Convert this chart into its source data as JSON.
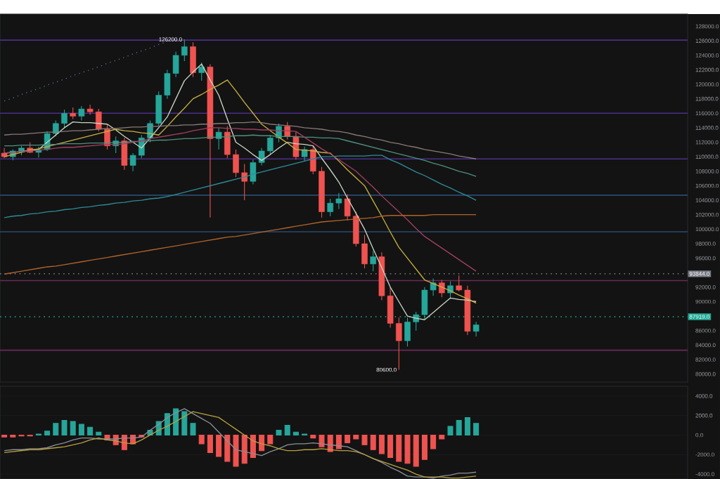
{
  "chart_data": [
    {
      "type": "candlestick",
      "categories": [
        null,
        null,
        null,
        null,
        null,
        null,
        null,
        null,
        null,
        null,
        null,
        null,
        null,
        null,
        null,
        null,
        null,
        null,
        null,
        null,
        null,
        null,
        null,
        null,
        null,
        null,
        null,
        null,
        null,
        null,
        null,
        null,
        null,
        null,
        null,
        null,
        null,
        null,
        null,
        null,
        null,
        null,
        null,
        null,
        null,
        null,
        null,
        null,
        null,
        null,
        null,
        null,
        null,
        null,
        null,
        null
      ],
      "ohlc": [
        [
          110500,
          111200,
          109800,
          110000
        ],
        [
          110000,
          111000,
          109500,
          110800
        ],
        [
          110800,
          111500,
          110200,
          111200
        ],
        [
          111200,
          112000,
          110500,
          110600
        ],
        [
          110600,
          111400,
          109900,
          111000
        ],
        [
          111000,
          113500,
          110800,
          113200
        ],
        [
          113200,
          115000,
          112800,
          114600
        ],
        [
          114600,
          116500,
          114000,
          116000
        ],
        [
          116000,
          116800,
          115200,
          115600
        ],
        [
          115600,
          117000,
          115000,
          116600
        ],
        [
          116600,
          117200,
          115800,
          116200
        ],
        [
          116200,
          116600,
          113500,
          113800
        ],
        [
          113800,
          114500,
          111000,
          111500
        ],
        [
          111500,
          112800,
          110500,
          112200
        ],
        [
          112200,
          112600,
          108200,
          108800
        ],
        [
          108800,
          110500,
          108000,
          110200
        ],
        [
          110200,
          113000,
          109800,
          112600
        ],
        [
          112600,
          115000,
          112000,
          114600
        ],
        [
          114600,
          119000,
          114200,
          118500
        ],
        [
          118500,
          122000,
          118000,
          121500
        ],
        [
          121500,
          124500,
          121000,
          124000
        ],
        [
          124000,
          126200,
          123200,
          125200
        ],
        [
          125200,
          125800,
          121000,
          121600
        ],
        [
          121600,
          123000,
          120500,
          122400
        ],
        [
          122400,
          122800,
          101600,
          112500
        ],
        [
          112500,
          114000,
          111000,
          113400
        ],
        [
          113400,
          114200,
          109800,
          110300
        ],
        [
          110300,
          111000,
          107200,
          107800
        ],
        [
          107800,
          109000,
          104000,
          106600
        ],
        [
          106600,
          109600,
          106200,
          109200
        ],
        [
          109200,
          111200,
          108800,
          110800
        ],
        [
          110800,
          113000,
          110200,
          112600
        ],
        [
          112600,
          114600,
          112000,
          114200
        ],
        [
          114200,
          114800,
          112400,
          112800
        ],
        [
          112800,
          113400,
          109600,
          110000
        ],
        [
          110000,
          111400,
          109400,
          111000
        ],
        [
          111000,
          111600,
          107600,
          108000
        ],
        [
          108000,
          108600,
          101600,
          102400
        ],
        [
          102400,
          104200,
          101800,
          103600
        ],
        [
          103600,
          105000,
          102800,
          104200
        ],
        [
          104200,
          104800,
          101200,
          101800
        ],
        [
          101800,
          102400,
          97600,
          98000
        ],
        [
          98000,
          99200,
          94600,
          95200
        ],
        [
          95200,
          97000,
          94200,
          96200
        ],
        [
          96200,
          96800,
          90200,
          90800
        ],
        [
          90800,
          92000,
          86400,
          87000
        ],
        [
          87000,
          87800,
          80600,
          84600
        ],
        [
          84600,
          87800,
          83800,
          87200
        ],
        [
          87200,
          88600,
          86000,
          88200
        ],
        [
          88200,
          92000,
          87600,
          91600
        ],
        [
          91600,
          93200,
          90800,
          92600
        ],
        [
          92600,
          93000,
          90600,
          91200
        ],
        [
          91200,
          92800,
          90400,
          92200
        ],
        [
          92200,
          93600,
          91400,
          91600
        ],
        [
          91600,
          92200,
          85400,
          85900
        ],
        [
          85900,
          87200,
          85200,
          86800
        ]
      ],
      "colors": [
        "#ef5350",
        "#26a69a",
        "#26a69a",
        "#ef5350",
        "#26a69a",
        "#26a69a",
        "#26a69a",
        "#26a69a",
        "#ef5350",
        "#26a69a",
        "#ef5350",
        "#ef5350",
        "#ef5350",
        "#26a69a",
        "#ef5350",
        "#26a69a",
        "#26a69a",
        "#26a69a",
        "#26a69a",
        "#26a69a",
        "#26a69a",
        "#26a69a",
        "#ef5350",
        "#26a69a",
        "#ef5350",
        "#26a69a",
        "#ef5350",
        "#ef5350",
        "#ef5350",
        "#26a69a",
        "#26a69a",
        "#26a69a",
        "#26a69a",
        "#ef5350",
        "#ef5350",
        "#26a69a",
        "#ef5350",
        "#ef5350",
        "#26a69a",
        "#26a69a",
        "#ef5350",
        "#ef5350",
        "#ef5350",
        "#26a69a",
        "#ef5350",
        "#ef5350",
        "#ef5350",
        "#26a69a",
        "#26a69a",
        "#26a69a",
        "#26a69a",
        "#ef5350",
        "#26a69a",
        "#ef5350",
        "#ef5350",
        "#26a69a"
      ],
      "series": [
        {
          "type": "line",
          "color": "#c9d6c4",
          "values": [
            110500,
            110600,
            110700,
            110900,
            111000,
            112000,
            113000,
            114000,
            114800,
            114700,
            114700,
            114600,
            114500,
            113700,
            112800,
            112000,
            111200,
            112600,
            114000,
            115500,
            118000,
            120500,
            121700,
            122800,
            120600,
            118500,
            115200,
            112000,
            111200,
            110300,
            109500,
            110300,
            111200,
            112000,
            111800,
            111700,
            111500,
            109800,
            108200,
            106500,
            104300,
            102200,
            100000,
            97300,
            94700,
            92000,
            90000,
            88000,
            87700,
            87500,
            88500,
            89500,
            90500,
            90300,
            90200,
            90000
          ]
        },
        {
          "type": "line",
          "color": "#c8b040",
          "values": [
            110000,
            110300,
            110600,
            110900,
            111100,
            111400,
            111700,
            112000,
            112300,
            112600,
            112900,
            113200,
            113500,
            113800,
            113600,
            113500,
            113300,
            113200,
            113000,
            114200,
            115500,
            116700,
            118000,
            118600,
            119300,
            119900,
            120600,
            119100,
            117500,
            116000,
            114500,
            113600,
            112700,
            111900,
            111000,
            110900,
            110800,
            110600,
            110500,
            109400,
            108200,
            107100,
            106000,
            103900,
            101800,
            99600,
            97500,
            96000,
            94500,
            93000,
            92500,
            92000,
            91500,
            90900,
            90400,
            89800
          ]
        },
        {
          "type": "line",
          "color": "#8a7a78",
          "values": [
            113000,
            113100,
            113100,
            113200,
            113300,
            113400,
            113400,
            113500,
            113600,
            113600,
            113700,
            113800,
            113900,
            113900,
            114000,
            114100,
            114100,
            114200,
            114200,
            114300,
            114300,
            114400,
            114400,
            114500,
            114500,
            114600,
            114600,
            114700,
            114700,
            114800,
            114700,
            114500,
            114400,
            114300,
            114200,
            114000,
            113900,
            113800,
            113600,
            113500,
            113300,
            113000,
            112800,
            112500,
            112300,
            112000,
            111800,
            111500,
            111300,
            111000,
            110800,
            110600,
            110400,
            110100,
            109900,
            109700
          ]
        },
        {
          "type": "line",
          "color": "#4f8f80",
          "values": [
            111500,
            111500,
            111600,
            111600,
            111600,
            111700,
            111700,
            111800,
            111800,
            111800,
            111900,
            111900,
            111900,
            112000,
            112000,
            112100,
            112100,
            112200,
            112300,
            112300,
            112400,
            112500,
            112500,
            112600,
            112700,
            112700,
            112800,
            112900,
            112900,
            113000,
            112900,
            112900,
            112800,
            112800,
            112800,
            112700,
            112700,
            112600,
            112600,
            112500,
            112200,
            111900,
            111600,
            111300,
            111000,
            110700,
            110400,
            110100,
            109800,
            109500,
            109100,
            108800,
            108400,
            108000,
            107700,
            107300
          ]
        },
        {
          "type": "line",
          "color": "#a04060",
          "values": [
            110500,
            110600,
            110700,
            110800,
            110900,
            111000,
            111200,
            111300,
            111300,
            111400,
            111500,
            111600,
            111700,
            111700,
            111800,
            112000,
            112200,
            112500,
            112700,
            112900,
            113100,
            113300,
            113600,
            113800,
            114000,
            114000,
            113900,
            113900,
            113800,
            113800,
            113700,
            113700,
            113600,
            113600,
            113500,
            112700,
            111900,
            111100,
            110400,
            109600,
            108800,
            108000,
            106900,
            105800,
            104600,
            103500,
            102400,
            101300,
            100100,
            99000,
            98200,
            97400,
            96600,
            95800,
            95000,
            94200
          ]
        },
        {
          "type": "line",
          "color": "#2e8c9a",
          "values": [
            101600,
            101800,
            101900,
            102100,
            102200,
            102400,
            102500,
            102700,
            102800,
            103000,
            103100,
            103300,
            103400,
            103600,
            103700,
            103900,
            104000,
            104200,
            104300,
            104500,
            104800,
            105100,
            105400,
            105700,
            106000,
            106300,
            106600,
            106900,
            107200,
            107600,
            107900,
            108200,
            108500,
            108800,
            109100,
            109400,
            109700,
            110000,
            110000,
            110100,
            110100,
            110100,
            110100,
            110200,
            110200,
            109600,
            109100,
            108500,
            107900,
            107400,
            106800,
            106200,
            105700,
            105100,
            104600,
            104000
          ]
        },
        {
          "type": "line",
          "color": "#b0642a",
          "values": [
            93800,
            94000,
            94200,
            94400,
            94600,
            94800,
            94900,
            95100,
            95300,
            95500,
            95700,
            95900,
            96100,
            96300,
            96500,
            96700,
            96900,
            97100,
            97300,
            97500,
            97700,
            97900,
            98100,
            98300,
            98500,
            98700,
            98900,
            99000,
            99200,
            99400,
            99600,
            99800,
            100000,
            100200,
            100400,
            100600,
            100800,
            101000,
            101100,
            101200,
            101300,
            101400,
            101500,
            101600,
            101800,
            101900,
            101900,
            101900,
            101900,
            101900,
            102000,
            102000,
            102000,
            102000,
            102000,
            102000
          ]
        },
        {
          "type": "line",
          "color": "#5a6a9a",
          "line_style": "dotted",
          "values": [
            117700,
            118100,
            118600,
            119000,
            119400,
            119900,
            120300,
            120700,
            121200,
            121600,
            122000,
            122400,
            122900,
            123300,
            123700,
            124200,
            124600,
            125000,
            125500,
            125900,
            null,
            null,
            null,
            null,
            null,
            null,
            null,
            null,
            null,
            null,
            null,
            null,
            null,
            null,
            null,
            null,
            null,
            null,
            null,
            null,
            null,
            null,
            null,
            null,
            null,
            null,
            null,
            null,
            null,
            null,
            null,
            null,
            null,
            null,
            null,
            null
          ]
        }
      ],
      "ref_lines": [
        {
          "axis": "y",
          "value": 126100,
          "color": "#4b2f8a"
        },
        {
          "axis": "y",
          "value": 116000,
          "color": "#4b2f8a"
        },
        {
          "axis": "y",
          "value": 109700,
          "color": "#4b2f8a"
        },
        {
          "axis": "y",
          "value": 104700,
          "color": "#2a4a70"
        },
        {
          "axis": "y",
          "value": 99650,
          "color": "#2a4a70"
        },
        {
          "axis": "y",
          "value": 92900,
          "color": "#6a2a58"
        },
        {
          "axis": "y",
          "value": 83300,
          "color": "#6a2a58"
        },
        {
          "axis": "y",
          "value": 93844,
          "label": "93844.0",
          "color": "#787b86",
          "line_style": "dotted"
        },
        {
          "axis": "y",
          "value": 87919,
          "label": "87919.0",
          "color": "#22ab94",
          "line_style": "dotted"
        }
      ],
      "annotations": [
        {
          "text": "126200.0",
          "y": 126200
        },
        "80600.0"
      ],
      "ylim": [
        78900,
        129700
      ],
      "yticks": [
        {
          "value": 80000,
          "label": "80000.0"
        },
        {
          "value": 82000,
          "label": "82000.0"
        },
        {
          "value": 84000,
          "label": "84000.0"
        },
        {
          "value": 86000,
          "label": "86000.0"
        },
        {
          "value": 90000,
          "label": "90000.0"
        },
        {
          "value": 92000,
          "label": "92000.0"
        },
        {
          "value": 96000,
          "label": "96000.0"
        },
        {
          "value": 98000,
          "label": "98000.0"
        },
        {
          "value": 100000,
          "label": "100000.0"
        },
        {
          "value": 102000,
          "label": "102000.0"
        },
        {
          "value": 104000,
          "label": "104000.0"
        },
        {
          "value": 106000,
          "label": "106000.0"
        },
        {
          "value": 108000,
          "label": "108000.0"
        },
        {
          "value": 110000,
          "label": "110000.0"
        },
        {
          "value": 112000,
          "label": "112000.0"
        },
        {
          "value": 114000,
          "label": "114000.0"
        },
        {
          "value": 116000,
          "label": "116000.0"
        },
        {
          "value": 118000,
          "label": "118000.0"
        },
        {
          "value": 120000,
          "label": "120000.0"
        },
        {
          "value": 122000,
          "label": "122000.0"
        },
        {
          "value": 124000,
          "label": "124000.0"
        },
        {
          "value": 126000,
          "label": "126000.0"
        },
        {
          "value": 128000,
          "label": "128000.0"
        }
      ],
      "tick_labels": "y"
    },
    {
      "type": "bar",
      "categories": [
        null,
        null,
        null,
        null,
        null,
        null,
        null,
        null,
        null,
        null,
        null,
        null,
        null,
        null,
        null,
        null,
        null,
        null,
        null,
        null,
        null,
        null,
        null,
        null,
        null,
        null,
        null,
        null,
        null,
        null,
        null,
        null,
        null,
        null,
        null,
        null,
        null,
        null,
        null,
        null,
        null,
        null,
        null,
        null,
        null,
        null,
        null,
        null,
        null,
        null,
        null,
        null,
        null,
        null,
        null,
        null
      ],
      "series": [
        {
          "type": "bar",
          "values": [
            -200,
            -200,
            -100,
            -100,
            100,
            400,
            1200,
            1500,
            1400,
            1100,
            800,
            300,
            -500,
            -1000,
            -1500,
            -900,
            -200,
            500,
            1400,
            2200,
            2700,
            2400,
            1200,
            -900,
            -1800,
            -2200,
            -2700,
            -3200,
            -2900,
            -2300,
            -1600,
            -900,
            500,
            1000,
            300,
            100,
            -300,
            -1200,
            -1700,
            -1400,
            -800,
            -400,
            -1000,
            -1500,
            -1900,
            -2300,
            -2700,
            -2900,
            -3200,
            -2500,
            -1400,
            -400,
            900,
            1500,
            1800,
            1200
          ],
          "colors": [
            "#ef5350",
            "#ef5350",
            "#ef5350",
            "#ef5350",
            "#26a69a",
            "#26a69a",
            "#26a69a",
            "#26a69a",
            "#26a69a",
            "#26a69a",
            "#26a69a",
            "#26a69a",
            "#ef5350",
            "#ef5350",
            "#ef5350",
            "#ef5350",
            "#ef5350",
            "#26a69a",
            "#26a69a",
            "#26a69a",
            "#26a69a",
            "#26a69a",
            "#26a69a",
            "#ef5350",
            "#ef5350",
            "#ef5350",
            "#ef5350",
            "#ef5350",
            "#ef5350",
            "#ef5350",
            "#ef5350",
            "#ef5350",
            "#26a69a",
            "#26a69a",
            "#26a69a",
            "#26a69a",
            "#ef5350",
            "#ef5350",
            "#ef5350",
            "#ef5350",
            "#ef5350",
            "#ef5350",
            "#ef5350",
            "#ef5350",
            "#ef5350",
            "#ef5350",
            "#ef5350",
            "#ef5350",
            "#ef5350",
            "#ef5350",
            "#ef5350",
            "#ef5350",
            "#26a69a",
            "#26a69a",
            "#26a69a",
            "#26a69a"
          ]
        },
        {
          "type": "line",
          "color": "#8a8f96",
          "values": [
            -1600,
            -1500,
            -1500,
            -1400,
            -1400,
            -1300,
            -1000,
            -800,
            -500,
            -300,
            -300,
            -400,
            -400,
            -400,
            -300,
            -300,
            -200,
            500,
            1100,
            1800,
            2300,
            2700,
            2200,
            1700,
            1200,
            300,
            -600,
            -1500,
            -1700,
            -1900,
            -2100,
            -1700,
            -1400,
            -1000,
            -900,
            -900,
            -800,
            -900,
            -1000,
            -1100,
            -1200,
            -1600,
            -2000,
            -2400,
            -2800,
            -3300,
            -3700,
            -4200,
            -4300,
            -4300,
            -4400,
            -4200,
            -4100,
            -3900,
            -3900,
            -3800
          ]
        },
        {
          "type": "line",
          "color": "#b8a040",
          "values": [
            -1800,
            -1700,
            -1600,
            -1500,
            -1500,
            -1400,
            -1300,
            -1200,
            -1000,
            -800,
            -500,
            -300,
            -500,
            -600,
            -800,
            -900,
            -500,
            0,
            500,
            900,
            1400,
            1900,
            2400,
            2200,
            2000,
            1800,
            1200,
            600,
            0,
            -600,
            -900,
            -1100,
            -1400,
            -1600,
            -1600,
            -1500,
            -1500,
            -1400,
            -1500,
            -1600,
            -1600,
            -1700,
            -2000,
            -2400,
            -2700,
            -3000,
            -3300,
            -3600,
            -4000,
            -4300,
            -4300,
            -4300,
            -4400,
            -4400,
            -4300,
            -4200
          ]
        }
      ],
      "ylim": [
        -4500,
        5000
      ],
      "yticks": [
        {
          "value": -4000,
          "label": "-4000.0"
        },
        {
          "value": -2000,
          "label": "-2000.0"
        },
        {
          "value": 0,
          "label": "0.0"
        },
        {
          "value": 2000,
          "label": "2000.0"
        },
        {
          "value": 4000,
          "label": "4000.0"
        }
      ],
      "grid": "y",
      "tick_labels": "y"
    }
  ]
}
